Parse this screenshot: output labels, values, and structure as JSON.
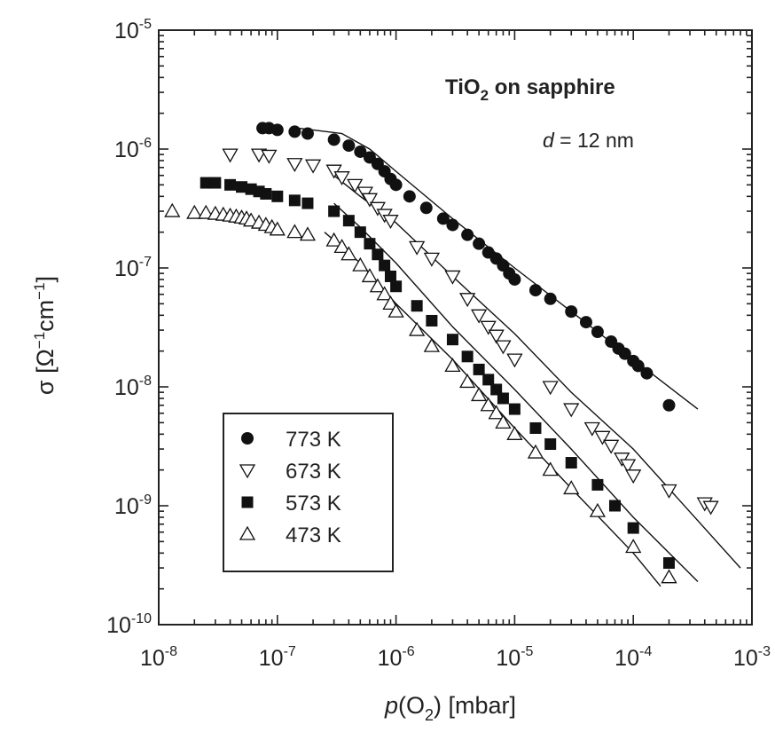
{
  "chart_data": {
    "type": "scatter",
    "x_scale": "log",
    "y_scale": "log",
    "xlim": [
      1e-08,
      0.001
    ],
    "ylim": [
      1e-10,
      1e-05
    ],
    "xlabel": {
      "pre": "p",
      "mid": "(O",
      "sub": "2",
      "post": ") [mbar]"
    },
    "ylabel": {
      "pre": "σ [Ω",
      "sup1": "−1",
      "mid": "cm",
      "sup2": "−1",
      "post": "]"
    },
    "x_ticks": [
      {
        "value": 1e-08,
        "base": "10",
        "exp": "-8"
      },
      {
        "value": 1e-07,
        "base": "10",
        "exp": "-7"
      },
      {
        "value": 1e-06,
        "base": "10",
        "exp": "-6"
      },
      {
        "value": 1e-05,
        "base": "10",
        "exp": "-5"
      },
      {
        "value": 0.0001,
        "base": "10",
        "exp": "-4"
      },
      {
        "value": 0.001,
        "base": "10",
        "exp": "-3"
      }
    ],
    "y_ticks": [
      {
        "value": 1e-10,
        "base": "10",
        "exp": "-10"
      },
      {
        "value": 1e-09,
        "base": "10",
        "exp": "-9"
      },
      {
        "value": 1e-08,
        "base": "10",
        "exp": "-8"
      },
      {
        "value": 1e-07,
        "base": "10",
        "exp": "-7"
      },
      {
        "value": 1e-06,
        "base": "10",
        "exp": "-6"
      },
      {
        "value": 1e-05,
        "base": "10",
        "exp": "-5"
      }
    ],
    "annotations": {
      "title_main": "TiO",
      "title_sub": "2",
      "title_rest": " on sapphire",
      "thickness_var": "d",
      "thickness_rest": " = 12 nm"
    },
    "legend_position": "lower-left",
    "series": [
      {
        "name": "773 K",
        "marker": "filled-circle",
        "points": [
          [
            7.5e-08,
            1.5e-06
          ],
          [
            8.5e-08,
            1.5e-06
          ],
          [
            1e-07,
            1.45e-06
          ],
          [
            1.4e-07,
            1.4e-06
          ],
          [
            1.8e-07,
            1.35e-06
          ],
          [
            3e-07,
            1.2e-06
          ],
          [
            4e-07,
            1.07e-06
          ],
          [
            5e-07,
            9.5e-07
          ],
          [
            6e-07,
            8.5e-07
          ],
          [
            7e-07,
            7.5e-07
          ],
          [
            8e-07,
            6.5e-07
          ],
          [
            9e-07,
            5.6e-07
          ],
          [
            1e-06,
            5e-07
          ],
          [
            1.3e-06,
            4e-07
          ],
          [
            1.8e-06,
            3.2e-07
          ],
          [
            2.5e-06,
            2.6e-07
          ],
          [
            3e-06,
            2.3e-07
          ],
          [
            4e-06,
            1.9e-07
          ],
          [
            5e-06,
            1.6e-07
          ],
          [
            6e-06,
            1.35e-07
          ],
          [
            7e-06,
            1.2e-07
          ],
          [
            8e-06,
            1.05e-07
          ],
          [
            9e-06,
            9e-08
          ],
          [
            1e-05,
            8e-08
          ],
          [
            1.5e-05,
            6.5e-08
          ],
          [
            2e-05,
            5.5e-08
          ],
          [
            3e-05,
            4.3e-08
          ],
          [
            4e-05,
            3.5e-08
          ],
          [
            5e-05,
            2.9e-08
          ],
          [
            6.5e-05,
            2.4e-08
          ],
          [
            7.5e-05,
            2.1e-08
          ],
          [
            8.5e-05,
            1.9e-08
          ],
          [
            0.0001,
            1.65e-08
          ],
          [
            0.00011,
            1.5e-08
          ],
          [
            0.00013,
            1.3e-08
          ],
          [
            0.0002,
            7e-09
          ]
        ]
      },
      {
        "name": "673 K",
        "marker": "open-triangle-down",
        "points": [
          [
            4e-08,
            9e-07
          ],
          [
            7e-08,
            9e-07
          ],
          [
            8.5e-08,
            8.8e-07
          ],
          [
            1.4e-07,
            7.5e-07
          ],
          [
            2e-07,
            7.3e-07
          ],
          [
            3e-07,
            6.6e-07
          ],
          [
            3.5e-07,
            5.8e-07
          ],
          [
            4.5e-07,
            5e-07
          ],
          [
            5.5e-07,
            4.3e-07
          ],
          [
            6e-07,
            3.8e-07
          ],
          [
            7e-07,
            3.2e-07
          ],
          [
            8e-07,
            2.8e-07
          ],
          [
            9e-07,
            2.5e-07
          ],
          [
            1.5e-06,
            1.5e-07
          ],
          [
            2e-06,
            1.2e-07
          ],
          [
            3e-06,
            8.5e-08
          ],
          [
            4e-06,
            5.5e-08
          ],
          [
            5e-06,
            4e-08
          ],
          [
            6e-06,
            3.2e-08
          ],
          [
            7e-06,
            2.7e-08
          ],
          [
            8e-06,
            2.2e-08
          ],
          [
            1e-05,
            1.7e-08
          ],
          [
            2e-05,
            1e-08
          ],
          [
            3e-05,
            6.5e-09
          ],
          [
            4.5e-05,
            4.5e-09
          ],
          [
            5.5e-05,
            3.8e-09
          ],
          [
            6.5e-05,
            3.2e-09
          ],
          [
            8e-05,
            2.5e-09
          ],
          [
            9e-05,
            2.2e-09
          ],
          [
            0.0001,
            1.8e-09
          ],
          [
            0.0002,
            1.35e-09
          ],
          [
            0.0004,
            1.05e-09
          ],
          [
            0.00045,
            9.8e-10
          ]
        ]
      },
      {
        "name": "573 K",
        "marker": "filled-square",
        "points": [
          [
            2.5e-08,
            5.2e-07
          ],
          [
            3e-08,
            5.2e-07
          ],
          [
            4e-08,
            5e-07
          ],
          [
            5e-08,
            4.8e-07
          ],
          [
            6e-08,
            4.6e-07
          ],
          [
            7e-08,
            4.4e-07
          ],
          [
            8e-08,
            4.2e-07
          ],
          [
            1e-07,
            4e-07
          ],
          [
            1.4e-07,
            3.7e-07
          ],
          [
            1.8e-07,
            3.5e-07
          ],
          [
            3e-07,
            3e-07
          ],
          [
            4e-07,
            2.5e-07
          ],
          [
            5e-07,
            2e-07
          ],
          [
            6e-07,
            1.6e-07
          ],
          [
            7e-07,
            1.3e-07
          ],
          [
            8e-07,
            1.05e-07
          ],
          [
            9e-07,
            8.5e-08
          ],
          [
            1e-06,
            7e-08
          ],
          [
            1.5e-06,
            4.8e-08
          ],
          [
            2e-06,
            3.6e-08
          ],
          [
            3e-06,
            2.5e-08
          ],
          [
            4e-06,
            1.8e-08
          ],
          [
            5e-06,
            1.4e-08
          ],
          [
            6e-06,
            1.15e-08
          ],
          [
            7e-06,
            9.5e-09
          ],
          [
            8e-06,
            8e-09
          ],
          [
            1e-05,
            6.5e-09
          ],
          [
            1.5e-05,
            4.5e-09
          ],
          [
            2e-05,
            3.3e-09
          ],
          [
            3e-05,
            2.3e-09
          ],
          [
            5e-05,
            1.5e-09
          ],
          [
            7e-05,
            1e-09
          ],
          [
            0.0001,
            6.5e-10
          ],
          [
            0.0002,
            3.3e-10
          ]
        ]
      },
      {
        "name": "473 K",
        "marker": "open-triangle-up",
        "points": [
          [
            1.3e-08,
            3e-07
          ],
          [
            2e-08,
            2.9e-07
          ],
          [
            2.5e-08,
            2.9e-07
          ],
          [
            3e-08,
            2.85e-07
          ],
          [
            3.5e-08,
            2.8e-07
          ],
          [
            4e-08,
            2.75e-07
          ],
          [
            4.5e-08,
            2.7e-07
          ],
          [
            5e-08,
            2.65e-07
          ],
          [
            5.5e-08,
            2.6e-07
          ],
          [
            6e-08,
            2.5e-07
          ],
          [
            7e-08,
            2.4e-07
          ],
          [
            8e-08,
            2.3e-07
          ],
          [
            9e-08,
            2.2e-07
          ],
          [
            1e-07,
            2.1e-07
          ],
          [
            1.4e-07,
            2e-07
          ],
          [
            1.8e-07,
            1.9e-07
          ],
          [
            3e-07,
            1.7e-07
          ],
          [
            3.5e-07,
            1.5e-07
          ],
          [
            4e-07,
            1.3e-07
          ],
          [
            5e-07,
            1.05e-07
          ],
          [
            6e-07,
            8.5e-08
          ],
          [
            7e-07,
            7e-08
          ],
          [
            8e-07,
            6e-08
          ],
          [
            9e-07,
            5e-08
          ],
          [
            1e-06,
            4.3e-08
          ],
          [
            1.5e-06,
            3e-08
          ],
          [
            2e-06,
            2.2e-08
          ],
          [
            3e-06,
            1.5e-08
          ],
          [
            4e-06,
            1.1e-08
          ],
          [
            5e-06,
            8.5e-09
          ],
          [
            6e-06,
            7e-09
          ],
          [
            7e-06,
            6e-09
          ],
          [
            8e-06,
            5e-09
          ],
          [
            1e-05,
            4e-09
          ],
          [
            1.5e-05,
            2.8e-09
          ],
          [
            2e-05,
            2e-09
          ],
          [
            3e-05,
            1.4e-09
          ],
          [
            5e-05,
            9e-10
          ],
          [
            0.0001,
            4.5e-10
          ],
          [
            0.0002,
            2.5e-10
          ]
        ]
      }
    ],
    "fit_lines": [
      {
        "series": "773 K",
        "points": [
          [
            1.5e-07,
            1.5e-06
          ],
          [
            3.5e-07,
            1.35e-06
          ],
          [
            6e-07,
            1e-06
          ],
          [
            1e-06,
            6.5e-07
          ],
          [
            3e-06,
            2.6e-07
          ],
          [
            1e-05,
            1e-07
          ],
          [
            3e-05,
            4.3e-08
          ],
          [
            0.0001,
            1.7e-08
          ],
          [
            0.00035,
            6.5e-09
          ]
        ]
      },
      {
        "series": "673 K",
        "points": [
          [
            3e-07,
            6e-07
          ],
          [
            5e-07,
            4e-07
          ],
          [
            1e-06,
            2.4e-07
          ],
          [
            3e-06,
            8.5e-08
          ],
          [
            1e-05,
            2.8e-08
          ],
          [
            3e-05,
            9e-09
          ],
          [
            0.0001,
            3e-09
          ],
          [
            0.0008,
            3e-10
          ]
        ]
      },
      {
        "series": "573 K",
        "points": [
          [
            3e-07,
            3.5e-07
          ],
          [
            5e-07,
            2.2e-07
          ],
          [
            1e-06,
            1.1e-07
          ],
          [
            3e-06,
            3.2e-08
          ],
          [
            1e-05,
            9.5e-09
          ],
          [
            3e-05,
            3e-09
          ],
          [
            0.0001,
            8e-10
          ],
          [
            0.00035,
            2.3e-10
          ]
        ]
      },
      {
        "series": "473 K",
        "points": [
          [
            2.5e-07,
            2e-07
          ],
          [
            5e-07,
            1.1e-07
          ],
          [
            1e-06,
            5e-08
          ],
          [
            3e-06,
            1.7e-08
          ],
          [
            1e-05,
            4.5e-09
          ],
          [
            3e-05,
            1.4e-09
          ],
          [
            0.0001,
            4e-10
          ],
          [
            0.00017,
            2.1e-10
          ]
        ]
      }
    ]
  }
}
